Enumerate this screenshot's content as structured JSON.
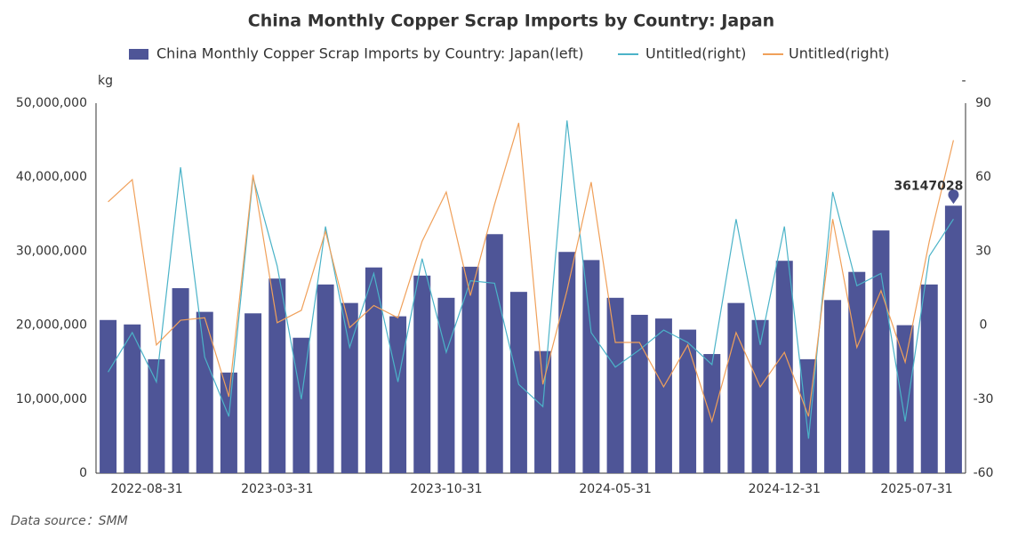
{
  "chart_data": {
    "type": "bar_line",
    "title": "China Monthly Copper Scrap Imports by Country: Japan",
    "y_unit": "kg",
    "y2_unit": "-",
    "source": "Data source：SMM",
    "categories": [
      "2022-08-31",
      null,
      null,
      null,
      null,
      null,
      null,
      "2023-03-31",
      null,
      null,
      null,
      null,
      null,
      null,
      "2023-10-31",
      null,
      null,
      null,
      null,
      null,
      null,
      "2024-05-31",
      null,
      null,
      null,
      null,
      null,
      null,
      "2024-12-31",
      null,
      null,
      null,
      null,
      null,
      null,
      "2025-07-31"
    ],
    "series": [
      {
        "name": "China Monthly Copper Scrap Imports by Country: Japan(left)",
        "color": "#4e5597",
        "kind": "bar",
        "axis": "y",
        "values": [
          20700000,
          20100000,
          15400000,
          25000000,
          21800000,
          13600000,
          21600000,
          26300000,
          18300000,
          25500000,
          23000000,
          27800000,
          21200000,
          26700000,
          23700000,
          27900000,
          32300000,
          24500000,
          16500000,
          29900000,
          28800000,
          23700000,
          21400000,
          20900000,
          19400000,
          16100000,
          23000000,
          20700000,
          28700000,
          15400000,
          23400000,
          27200000,
          32800000,
          20000000,
          25500000,
          36147028
        ]
      },
      {
        "name": "Untitled(right)",
        "color": "#4bb3c8",
        "kind": "line",
        "axis": "y2",
        "values": [
          -19,
          -3,
          -23,
          64,
          -13,
          -37,
          60,
          24,
          -30,
          40,
          -9,
          21,
          -23,
          27,
          -11,
          18,
          17,
          -24,
          -33,
          83,
          -3,
          -17,
          -10,
          -2,
          -7,
          -16,
          43,
          -8,
          40,
          -46,
          54,
          16,
          21,
          -39,
          28,
          43
        ]
      },
      {
        "name": "Untitled(right)",
        "color": "#f0a05a",
        "kind": "line",
        "axis": "y2",
        "values": [
          50,
          59,
          -8,
          2,
          3,
          -29,
          61,
          1,
          6,
          38,
          -1,
          8,
          3,
          34,
          54,
          12,
          49,
          82,
          -24,
          14,
          58,
          -7,
          -7,
          -25,
          -8,
          -39,
          -3,
          -25,
          -11,
          -37,
          43,
          -9,
          14,
          -15,
          34,
          75
        ]
      }
    ],
    "ylim": [
      0,
      50000000
    ],
    "yticks": [
      0,
      {
        "value": 10000000,
        "label": "10,000,000"
      },
      {
        "value": 20000000,
        "label": "20,000,000"
      },
      {
        "value": 30000000,
        "label": "30,000,000"
      },
      {
        "value": 40000000,
        "label": "40,000,000"
      },
      {
        "value": 50000000,
        "label": "50,000,000"
      }
    ],
    "y2lim": [
      -60,
      90
    ],
    "y2ticks": [
      -60,
      -30,
      0,
      30,
      60,
      90
    ]
  }
}
